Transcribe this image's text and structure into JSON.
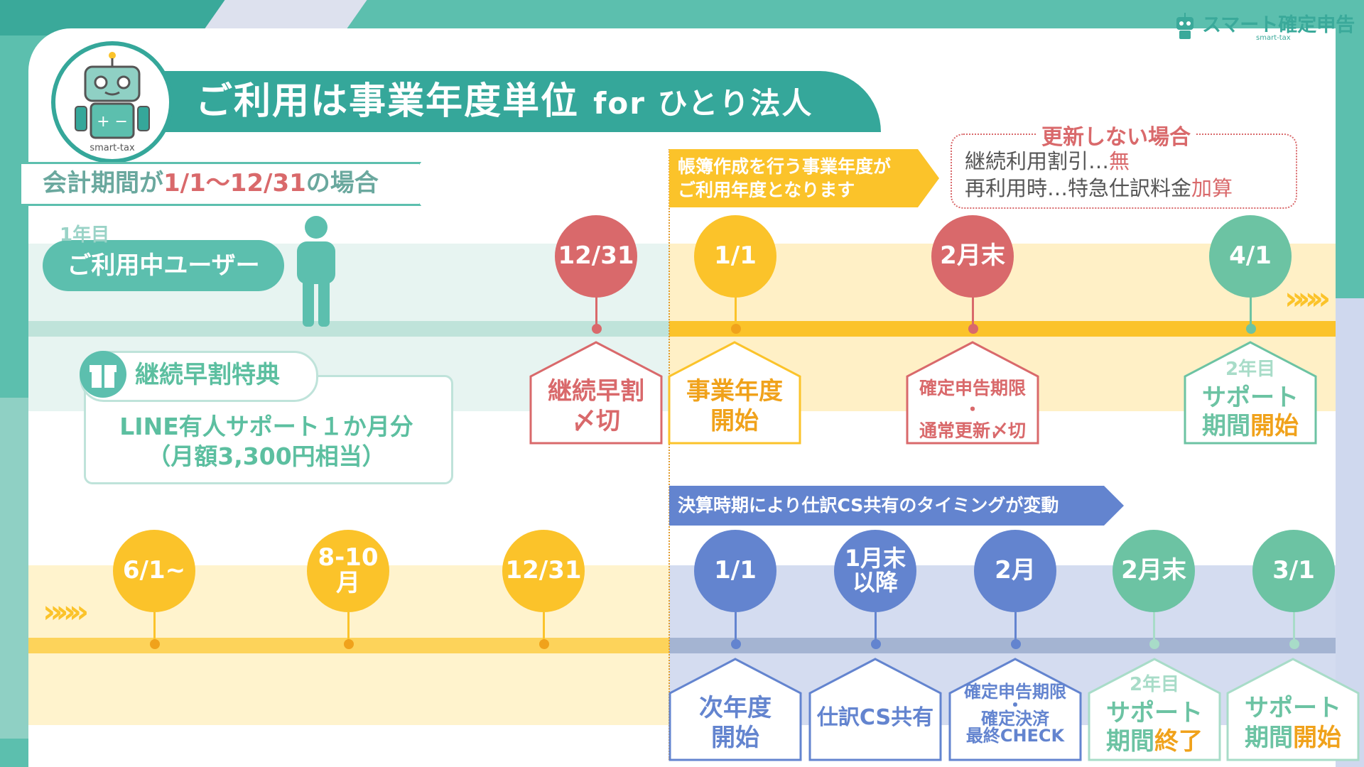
{
  "title": {
    "main": "ご利用は事業年度単位",
    "suffix": "for ひとり法人"
  },
  "brand": {
    "name": "スマート確定申告",
    "sub": "smart-tax",
    "mascot_label": "smart-tax"
  },
  "colors": {
    "teal": "#35a79a",
    "red": "#d9696b",
    "orange": "#fbc32a",
    "blue": "#6384cf",
    "green": "#6cc3a3"
  },
  "period": {
    "prefix": "会計期間が",
    "range": "1/1〜12/31",
    "suffix": "の場合"
  },
  "user": {
    "year": "1年目",
    "status": "ご利用中ユーザー"
  },
  "banner_top": {
    "line1": "帳簿作成を行う事業年度が",
    "line2": "ご利用年度となります"
  },
  "nonrenew": {
    "title": "更新しない場合",
    "line1_text": "継続利用割引…",
    "line1_em": "無",
    "line2_text": "再利用時…特急仕訳料金",
    "line2_em": "加算"
  },
  "gift": {
    "title": "継続早割特典",
    "line1": "LINE有人サポート１か月分",
    "line2": "（月額3,300円相当）",
    "icon": "gift-icon"
  },
  "timeline1": [
    {
      "date": "12/31",
      "label1": "継続早割",
      "label2": "〆切"
    },
    {
      "date": "1/1",
      "label1": "事業年度",
      "label2": "開始"
    },
    {
      "date": "2月末",
      "label1": "確定申告期限",
      "label_mid": "・",
      "label2": "通常更新〆切"
    },
    {
      "date": "4/1",
      "label_top": "2年目",
      "label1": "サポート",
      "label2a": "期間",
      "label2b": "開始"
    }
  ],
  "banner_bottom": {
    "text": "決算時期により仕訳CS共有のタイミングが変動"
  },
  "timeline2_pre": [
    {
      "date": "6/1~"
    },
    {
      "date": "8-10月"
    },
    {
      "date": "12/31"
    }
  ],
  "timeline2": [
    {
      "date": "1/1",
      "label1": "次年度",
      "label2": "開始"
    },
    {
      "date_l1": "1月末",
      "date_l2": "以降",
      "label1": "仕訳CS共有"
    },
    {
      "date": "2月",
      "label1": "確定申告期限",
      "label_mid": "・",
      "label2": "確定決済",
      "label3": "最終CHECK"
    },
    {
      "date": "2月末",
      "label_top": "2年目",
      "label1": "サポート",
      "label2a": "期間",
      "label2b": "終了"
    },
    {
      "date": "3/1",
      "label1": "サポート",
      "label2a": "期間",
      "label2b": "開始"
    }
  ],
  "chevrons": "»»»"
}
